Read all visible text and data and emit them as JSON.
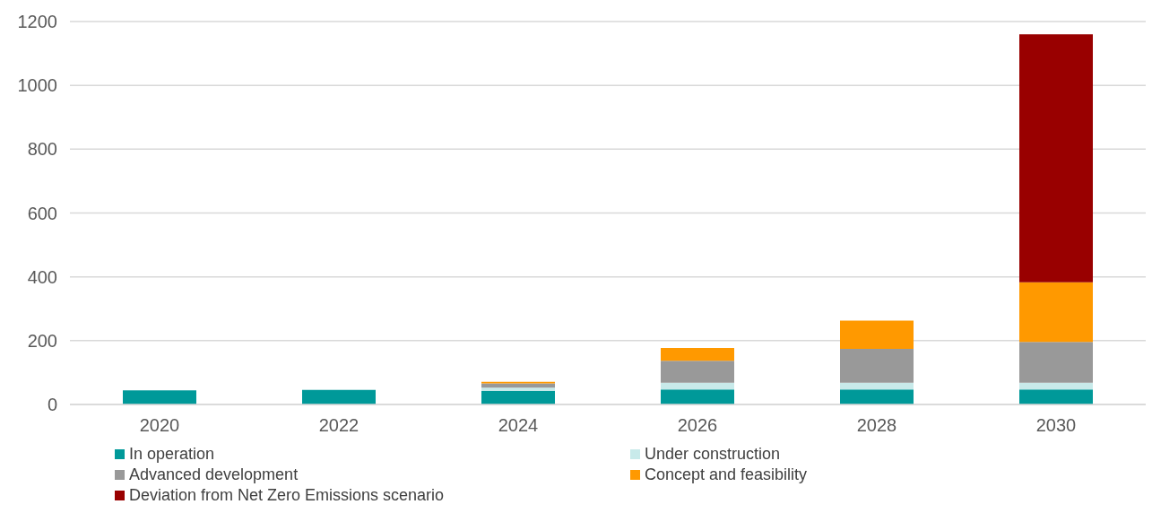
{
  "chart_data": {
    "type": "bar",
    "stacked": true,
    "categories": [
      "2020",
      "2022",
      "2024",
      "2026",
      "2028",
      "2030"
    ],
    "series": [
      {
        "name": "In operation",
        "color": "#009999",
        "values": [
          44,
          46,
          43,
          47,
          47,
          47
        ]
      },
      {
        "name": "Under construction",
        "color": "#c8eaea",
        "values": [
          0,
          0,
          10,
          21,
          21,
          21
        ]
      },
      {
        "name": "Advanced development",
        "color": "#999999",
        "values": [
          0,
          0,
          13,
          69,
          106,
          128
        ]
      },
      {
        "name": "Concept and feasibility",
        "color": "#ff9900",
        "values": [
          0,
          0,
          5,
          40,
          89,
          187
        ]
      },
      {
        "name": "Deviation from Net Zero Emissions scenario",
        "color": "#990000",
        "values": [
          0,
          0,
          0,
          0,
          0,
          777
        ]
      }
    ],
    "ylim": [
      0,
      1200
    ],
    "yticks": [
      0,
      200,
      400,
      600,
      800,
      1000,
      1200
    ],
    "grid": "y",
    "legend": "bottom"
  }
}
